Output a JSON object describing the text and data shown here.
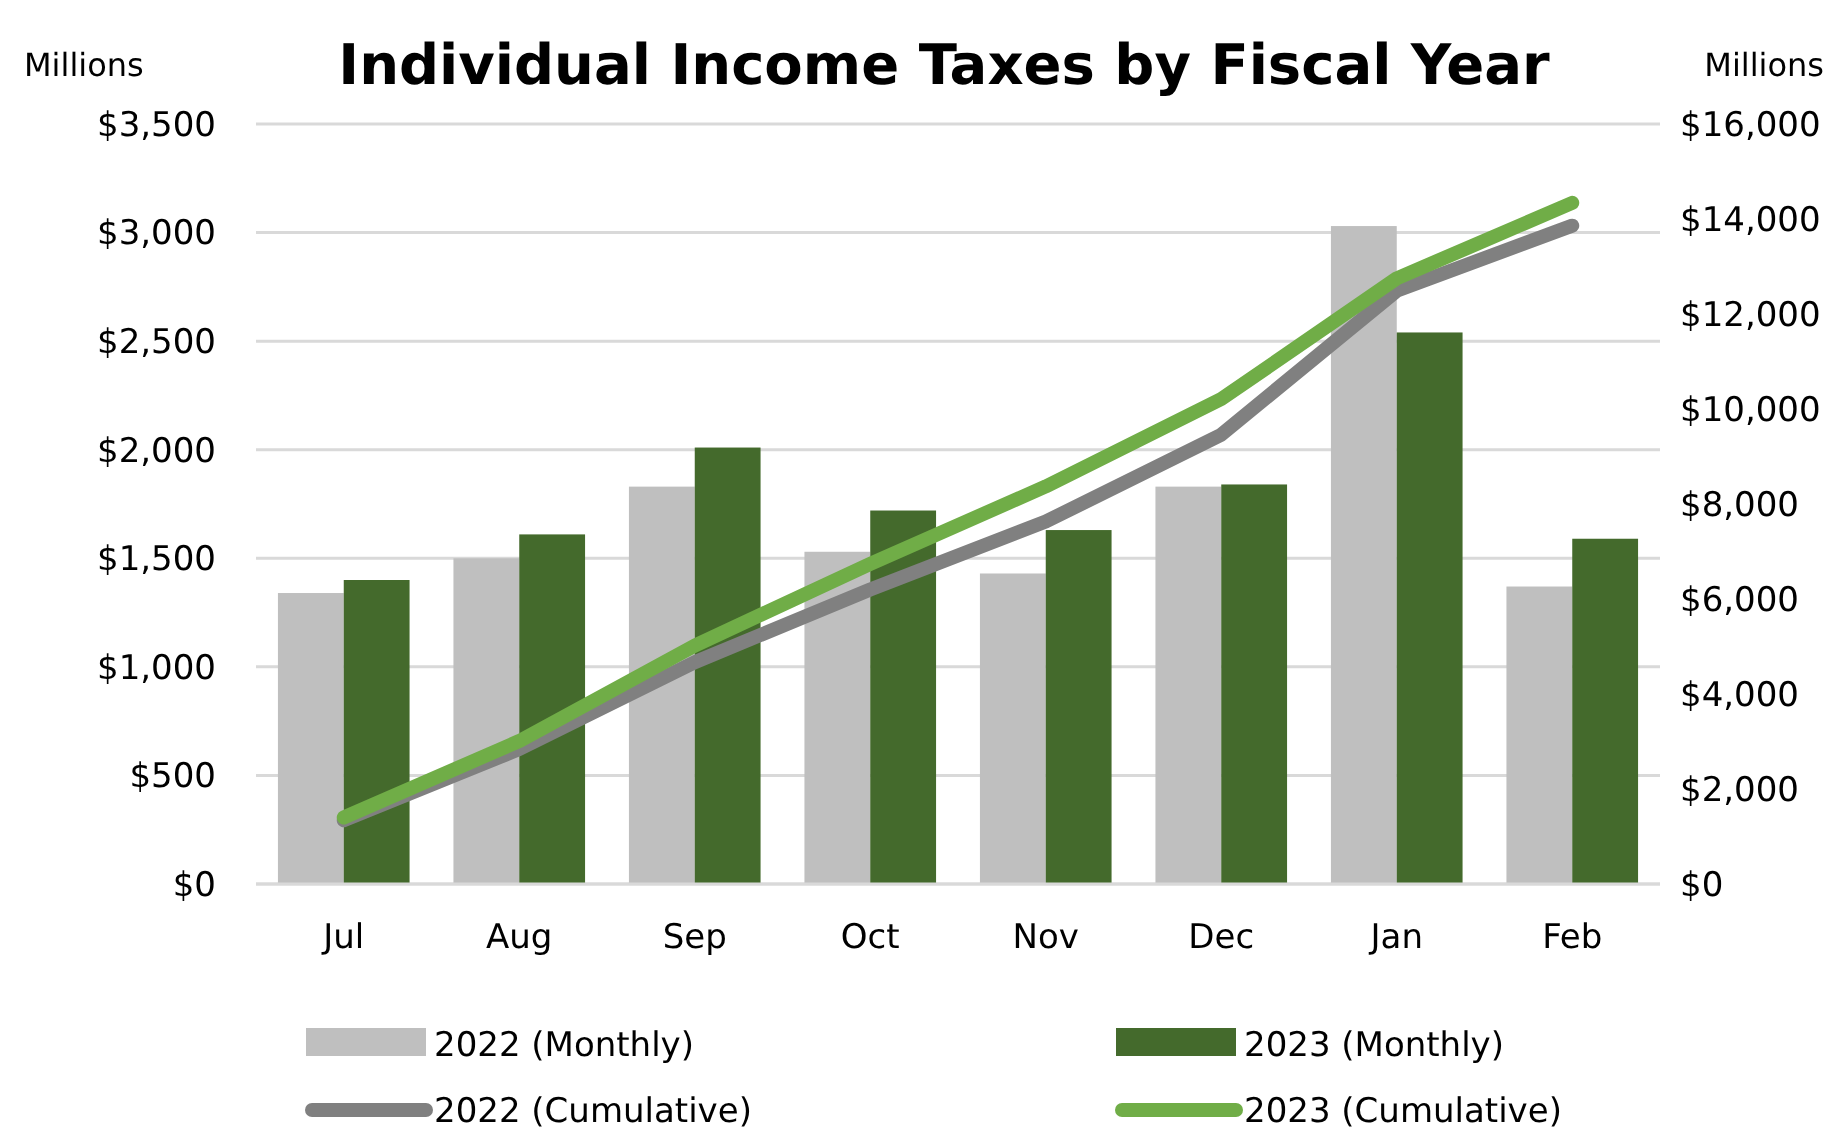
{
  "chart_data": {
    "type": "bar",
    "title": "Individual Income Taxes by Fiscal Year",
    "ylabel": "Millions",
    "y2label": "Millions",
    "categories": [
      "Jul",
      "Aug",
      "Sep",
      "Oct",
      "Nov",
      "Dec",
      "Jan",
      "Feb"
    ],
    "series": [
      {
        "name": "2022 (Monthly)",
        "color": "#bfbfbf",
        "values": [
          1340,
          1500,
          1830,
          1530,
          1430,
          1830,
          3030,
          1370
        ]
      },
      {
        "name": "2023 (Monthly)",
        "color": "#446a2c",
        "values": [
          1400,
          1610,
          2010,
          1720,
          1630,
          1840,
          2540,
          1590
        ]
      },
      {
        "name": "2022 (Cumulative)",
        "type": "line",
        "axis": "y2",
        "color": "#808080",
        "values": [
          1340,
          2840,
          4670,
          6200,
          7630,
          9460,
          12490,
          13860
        ]
      },
      {
        "name": "2023 (Cumulative)",
        "type": "line",
        "axis": "y2",
        "color": "#70ad47",
        "values": [
          1400,
          3010,
          5020,
          6740,
          8370,
          10210,
          12750,
          14340
        ]
      }
    ],
    "ylim": [
      0,
      3500
    ],
    "yticks": [
      {
        "value": 0,
        "label": "$0"
      },
      {
        "value": 500,
        "label": "$500"
      },
      {
        "value": 1000,
        "label": "$1,000"
      },
      {
        "value": 1500,
        "label": "$1,500"
      },
      {
        "value": 2000,
        "label": "$2,000"
      },
      {
        "value": 2500,
        "label": "$2,500"
      },
      {
        "value": 3000,
        "label": "$3,000"
      },
      {
        "value": 3500,
        "label": "$3,500"
      }
    ],
    "y2lim": [
      0,
      16000
    ],
    "y2ticks": [
      {
        "value": 0,
        "label": "$0"
      },
      {
        "value": 2000,
        "label": "$2,000"
      },
      {
        "value": 4000,
        "label": "$4,000"
      },
      {
        "value": 6000,
        "label": "$6,000"
      },
      {
        "value": 8000,
        "label": "$8,000"
      },
      {
        "value": 10000,
        "label": "$10,000"
      },
      {
        "value": 12000,
        "label": "$12,000"
      },
      {
        "value": 14000,
        "label": "$14,000"
      },
      {
        "value": 16000,
        "label": "$16,000"
      }
    ],
    "grid": "y",
    "legend": "bottom",
    "marker": "none",
    "line_style": "solid"
  }
}
